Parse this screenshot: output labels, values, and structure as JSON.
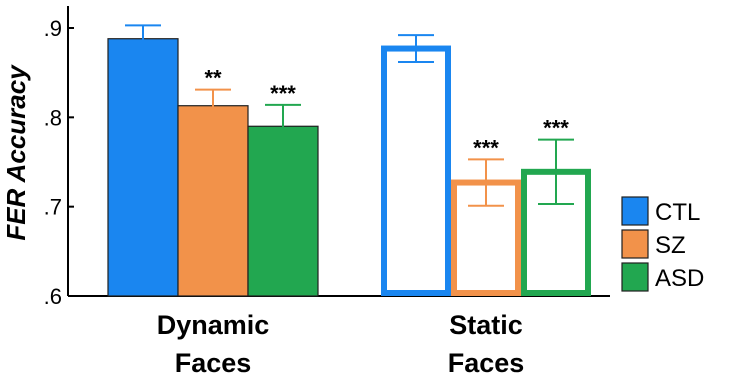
{
  "chart_data": {
    "type": "bar",
    "ylabel": "FER Accuracy",
    "ylim": [
      0.6,
      0.92
    ],
    "yticks": [
      ".6",
      ".7",
      ".8",
      ".9"
    ],
    "ytick_values": [
      0.6,
      0.7,
      0.8,
      0.9
    ],
    "categories": [
      [
        "Dynamic",
        "Faces"
      ],
      [
        "Static",
        "Faces"
      ]
    ],
    "category_styles": [
      "filled",
      "outline"
    ],
    "series": [
      {
        "name": "CTL",
        "color": "#1a86f0",
        "values": [
          0.888,
          0.877
        ],
        "error": [
          0.015,
          0.015
        ],
        "significance": [
          "",
          ""
        ]
      },
      {
        "name": "SZ",
        "color": "#f2924a",
        "values": [
          0.813,
          0.727
        ],
        "error": [
          0.018,
          0.026
        ],
        "significance": [
          "**",
          "***"
        ]
      },
      {
        "name": "ASD",
        "color": "#22a750",
        "values": [
          0.79,
          0.739
        ],
        "error": [
          0.024,
          0.036
        ],
        "significance": [
          "***",
          "***"
        ]
      }
    ],
    "legend": {
      "position": "right",
      "entries": [
        "CTL",
        "SZ",
        "ASD"
      ]
    },
    "grid": false
  }
}
